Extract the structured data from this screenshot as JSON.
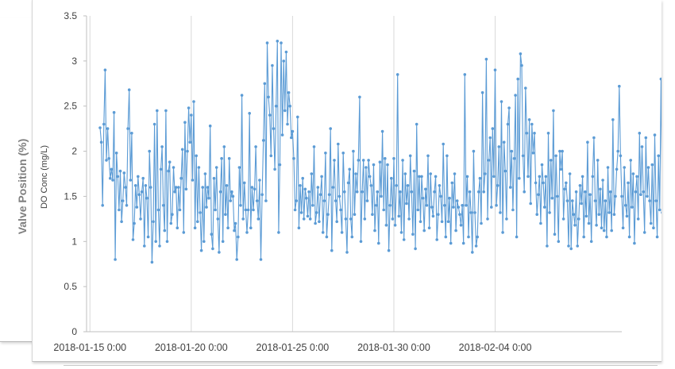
{
  "back_chart": {
    "ylabel": "Valve Position (%)"
  },
  "chart_data": {
    "type": "line",
    "title": "",
    "xlabel": "",
    "ylabel": "DO Conc (mg/L)",
    "ylim": [
      0,
      3.5
    ],
    "yticks": [
      0,
      0.5,
      1,
      1.5,
      2,
      2.5,
      3,
      3.5
    ],
    "ytick_labels": [
      "0",
      "0.5",
      "1",
      "1.5",
      "2",
      "2.5",
      "3",
      "3.5"
    ],
    "xlim": [
      "2018-01-14 20:00",
      "2018-02-10 06:00"
    ],
    "xticks": [
      "2018-01-15 00:00",
      "2018-01-20 00:00",
      "2018-01-25 00:00",
      "2018-01-30 00:00",
      "2018-02-04 00:00"
    ],
    "xtick_labels": [
      "2018-01-15 0:00",
      "2018-01-20 0:00",
      "2018-01-25 0:00",
      "2018-01-30 0:00",
      "2018-02-04 0:00"
    ],
    "grid": "vertical",
    "legend": "none",
    "color": "#5b9bd5",
    "series": [
      {
        "start": "2018-01-15 12:00",
        "interval_hours": 1.5,
        "values": [
          2.26,
          2.1,
          1.4,
          2.3,
          2.9,
          1.9,
          2.25,
          1.92,
          1.7,
          1.8,
          1.68,
          2.43,
          0.8,
          1.98,
          1.72,
          1.35,
          1.78,
          1.22,
          1.45,
          1.76,
          1.6,
          1.4,
          2.25,
          2.68,
          1.68,
          2.2,
          1.02,
          1.2,
          1.62,
          1.38,
          1.72,
          1.52,
          1.25,
          1.55,
          1.7,
          0.95,
          1.62,
          1.48,
          1.05,
          2.0,
          1.6,
          0.77,
          1.22,
          2.3,
          1.0,
          2.45,
          1.35,
          0.95,
          1.8,
          2.05,
          1.4,
          1.12,
          2.45,
          1.0,
          1.78,
          1.88,
          1.2,
          1.3,
          1.82,
          1.55,
          1.6,
          1.15,
          1.6,
          1.35,
          1.7,
          2.02,
          1.1,
          2.32,
          1.58,
          2.0,
          2.48,
          2.1,
          2.4,
          1.68,
          2.55,
          1.15,
          1.95,
          1.22,
          1.82,
          1.32,
          0.9,
          1.6,
          1.0,
          1.75,
          1.38,
          1.6,
          1.48,
          2.28,
          1.08,
          0.92,
          1.7,
          1.35,
          1.82,
          1.25,
          0.88,
          1.55,
          1.92,
          1.0,
          2.05,
          1.3,
          1.62,
          1.15,
          1.92,
          1.45,
          1.55,
          1.5,
          1.12,
          1.2,
          0.8,
          1.05,
          1.82,
          1.4,
          2.62,
          1.25,
          1.65,
          1.35,
          1.1,
          1.35,
          2.42,
          1.15,
          1.6,
          1.35,
          1.58,
          2.05,
          1.45,
          1.25,
          1.68,
          0.8,
          1.52,
          2.12,
          2.75,
          1.45,
          3.2,
          2.6,
          2.4,
          1.95,
          2.95,
          2.25,
          1.8,
          2.5,
          3.22,
          1.1,
          1.85,
          3.2,
          2.18,
          3.0,
          2.45,
          3.1,
          2.3,
          2.65,
          2.5,
          2.15,
          2.22,
          1.92,
          1.35,
          1.45,
          2.38,
          1.15,
          1.62,
          1.32,
          1.7,
          1.25,
          1.58,
          1.48,
          1.28,
          1.55,
          1.25,
          1.75,
          1.4,
          2.05,
          1.2,
          1.32,
          1.6,
          1.22,
          1.52,
          1.72,
          1.1,
          1.45,
          1.98,
          1.05,
          1.3,
          1.52,
          2.25,
          0.9,
          1.6,
          1.9,
          1.45,
          1.22,
          2.08,
          1.5,
          1.35,
          1.1,
          1.98,
          1.55,
          1.25,
          0.88,
          1.65,
          1.8,
          1.25,
          1.05,
          2.0,
          1.3,
          1.75,
          1.55,
          1.9,
          2.6,
          1.0,
          1.55,
          1.9,
          1.25,
          1.82,
          1.45,
          1.9,
          1.72,
          1.62,
          1.3,
          1.85,
          1.12,
          1.4,
          1.55,
          0.98,
          1.88,
          1.5,
          2.22,
          1.35,
          1.92,
          1.18,
          1.85,
          0.9,
          1.4,
          1.7,
          1.25,
          1.92,
          1.18,
          1.62,
          2.85,
          1.28,
          1.55,
          1.1,
          1.9,
          1.02,
          1.75,
          1.42,
          1.62,
          1.25,
          1.95,
          1.55,
          1.08,
          1.78,
          0.92,
          2.3,
          1.35,
          1.72,
          1.22,
          1.72,
          1.48,
          1.12,
          1.58,
          1.4,
          1.95,
          1.15,
          1.75,
          1.38,
          1.28,
          1.55,
          1.72,
          1.02,
          1.3,
          1.62,
          1.5,
          1.22,
          2.08,
          1.4,
          1.05,
          1.95,
          1.22,
          1.48,
          0.98,
          1.65,
          1.38,
          1.75,
          1.12,
          1.45,
          1.38,
          1.3,
          1.18,
          1.4,
          0.98,
          2.85,
          1.4,
          1.72,
          1.05,
          1.55,
          1.32,
          0.88,
          2.0,
          1.32,
          0.95,
          1.05,
          1.55,
          1.7,
          1.2,
          2.65,
          1.55,
          1.75,
          3.02,
          1.25,
          1.9,
          2.15,
          1.38,
          2.25,
          1.72,
          2.9,
          1.4,
          1.62,
          2.05,
          1.32,
          2.55,
          1.1,
          2.1,
          1.78,
          1.25,
          2.3,
          2.48,
          1.6,
          2.0,
          1.35,
          1.92,
          2.62,
          1.05,
          2.8,
          1.7,
          3.08,
          2.95,
          1.95,
          1.55,
          2.7,
          2.2,
          1.72,
          2.35,
          1.42,
          2.3,
          1.98,
          2.2,
          1.65,
          1.3,
          1.52,
          1.72,
          1.2,
          1.85,
          1.65,
          1.38,
          1.72,
          0.95,
          2.2,
          1.32,
          1.9,
          1.48,
          2.45,
          1.08,
          1.95,
          1.5,
          1.0,
          2.0,
          1.8,
          2.0,
          1.25,
          1.58,
          1.65,
          1.45,
          0.95,
          1.75,
          0.92,
          1.45,
          1.3,
          1.18,
          1.55,
          0.95,
          1.25,
          1.62,
          1.42,
          1.72,
          1.05,
          1.55,
          1.28,
          2.1,
          1.2,
          1.52,
          1.0,
          1.72,
          2.15,
          1.45,
          1.18,
          1.9,
          1.3,
          1.58,
          1.15,
          1.68,
          1.12,
          1.45,
          1.05,
          1.82,
          1.32,
          1.55,
          1.12,
          2.35,
          1.3,
          1.5,
          1.8,
          2.0,
          2.72,
          1.95,
          1.5,
          1.15,
          1.82,
          1.4,
          1.28,
          1.65,
          1.05,
          1.9,
          1.38,
          1.75,
          0.98,
          1.55,
          1.72,
          1.25,
          2.2,
          1.52,
          2.05,
          1.55,
          1.1,
          2.15,
          1.5,
          1.82,
          1.45,
          1.2,
          1.85,
          1.15,
          2.18,
          1.45,
          1.05,
          1.95,
          1.35,
          2.8,
          1.32,
          1.7,
          1.25,
          1.95,
          1.6,
          1.08,
          1.65,
          1.38,
          1.72,
          1.22,
          1.62,
          1.02,
          1.55,
          1.12,
          1.82,
          0.98,
          1.45,
          1.2,
          1.72,
          1.32,
          0.82,
          1.6,
          1.05,
          1.62,
          1.15,
          1.48,
          2.0,
          1.1,
          1.38,
          1.7,
          1.25,
          1.85,
          0.85,
          1.45,
          1.65,
          1.1,
          1.48,
          1.9,
          1.25,
          1.68,
          1.1,
          1.28,
          1.72,
          1.48,
          1.28,
          2.15,
          1.05,
          1.55,
          0.9,
          1.58,
          1.08,
          1.45,
          1.25,
          1.98,
          1.32,
          1.75,
          1.02,
          1.5,
          1.45,
          0.78,
          1.58,
          1.88,
          1.15,
          1.75,
          1.45,
          2.15,
          1.3,
          1.92,
          1.38,
          2.55,
          1.45,
          1.65,
          1.32,
          1.05,
          1.75,
          1.5,
          1.25,
          1.62,
          1.12,
          1.4,
          1.05,
          1.55,
          1.82,
          1.1,
          1.72,
          1.38,
          1.6,
          1.0,
          1.45,
          1.62,
          1.12,
          1.55,
          1.28,
          1.65,
          0.95,
          1.52,
          2.05,
          1.35,
          1.72,
          1.25,
          1.9,
          1.5,
          1.42,
          1.95,
          1.1,
          1.58,
          1.28,
          1.85,
          1.5,
          1.32,
          1.82,
          1.25,
          1.6,
          2.18,
          1.95,
          1.22,
          1.55,
          1.05,
          1.72,
          0.92,
          1.85,
          1.38,
          1.18,
          1.62,
          1.52,
          1.32,
          0.95,
          1.58,
          1.75,
          1.22,
          1.45,
          1.88,
          1.32,
          1.62,
          1.25,
          2.35,
          1.3,
          1.92,
          1.58,
          1.85,
          1.52,
          2.68,
          1.72,
          1.95,
          1.48,
          2.32,
          1.62,
          1.85,
          1.25,
          2.22,
          1.58,
          1.22,
          1.45,
          2.62,
          1.52,
          1.15,
          1.32,
          2.15,
          0.95,
          2.08,
          2.05,
          1.95
        ]
      }
    ]
  }
}
